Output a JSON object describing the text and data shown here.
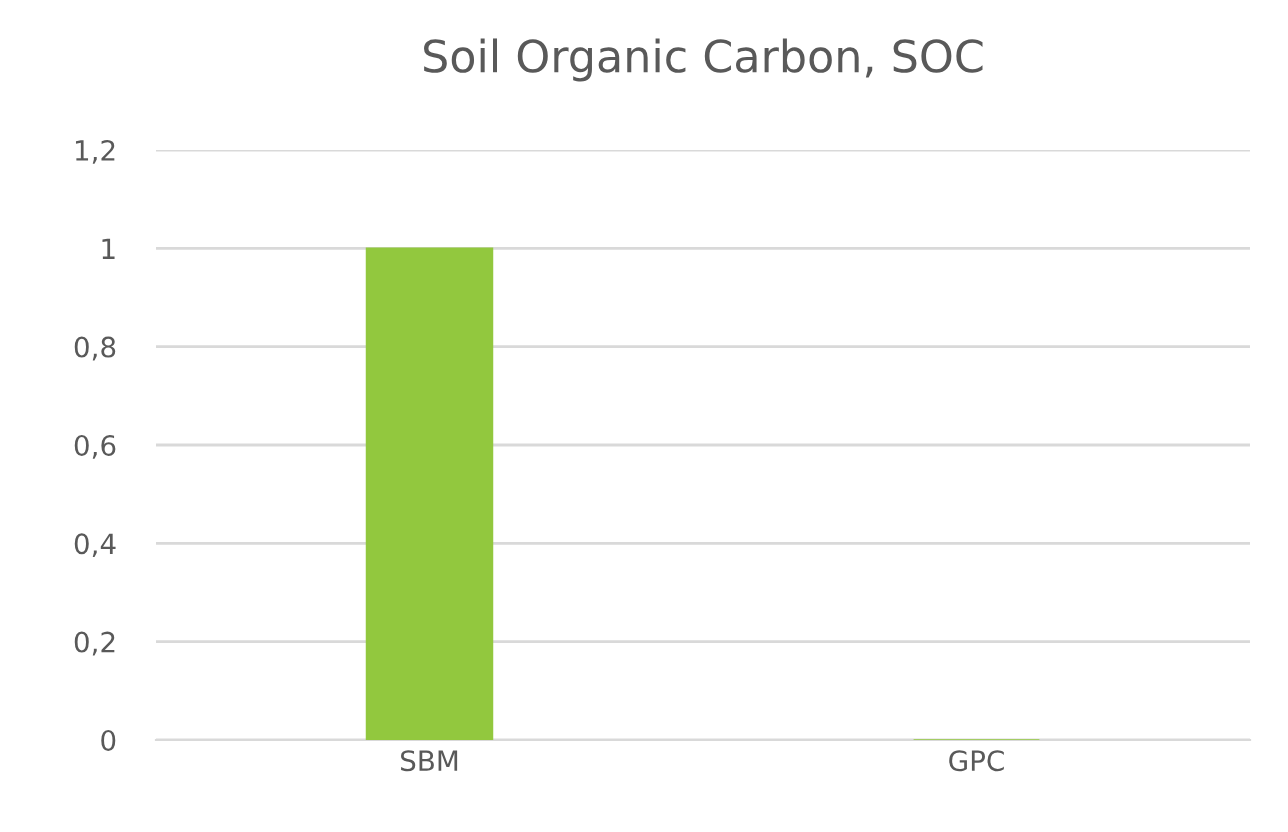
{
  "chart_data": {
    "type": "bar",
    "title": "Soil Organic Carbon, SOC",
    "categories": [
      "SBM",
      "GPC"
    ],
    "values": [
      1,
      0
    ],
    "color": "#92c83e",
    "ylim": [
      0,
      1.2
    ],
    "yticks": [
      0,
      {
        "value": 0.2,
        "label": "0,2"
      },
      {
        "value": 0.4,
        "label": "0,4"
      },
      {
        "value": 0.6,
        "label": "0,6"
      },
      {
        "value": 0.8,
        "label": "0,8"
      },
      1,
      {
        "value": 1.2,
        "label": "1,2"
      }
    ],
    "grid": "y",
    "legend": false
  }
}
